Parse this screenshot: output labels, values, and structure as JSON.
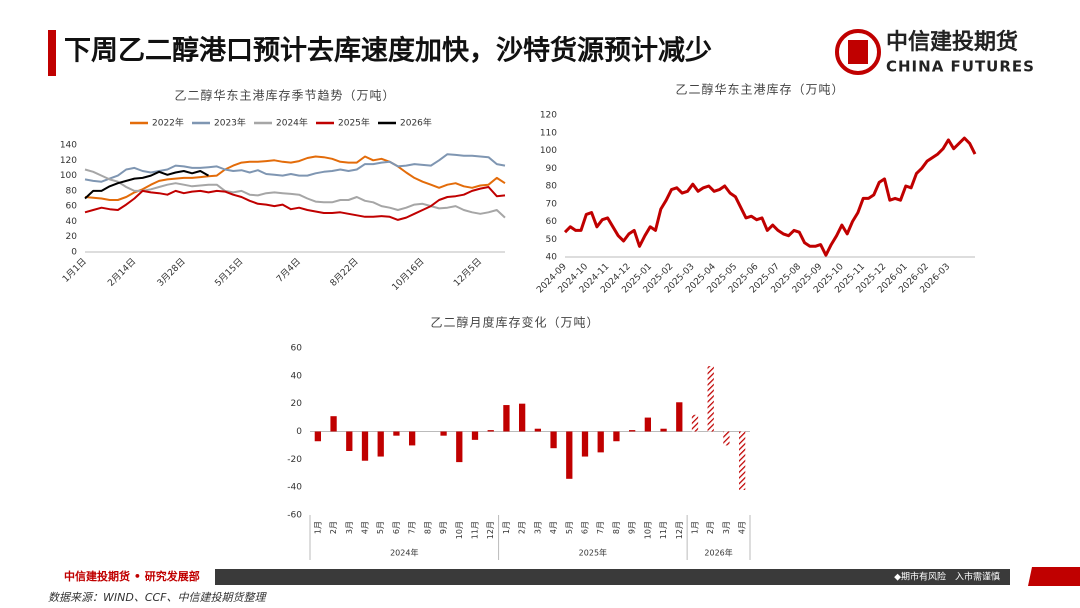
{
  "header": {
    "title": "下周乙二醇港口预计去库速度加快，沙特货源预计减少",
    "logo_cn": "中信建投期货",
    "logo_en": "CHINA FUTURES"
  },
  "footer": {
    "dept": "中信建投期货 • 研究发展部",
    "warning": "◆期市有风险　入市需谨慎",
    "source": "数据来源：WIND、CCF、中信建投期货整理"
  },
  "chart_data": [
    {
      "type": "line",
      "title": "乙二醇华东主港库存季节趋势（万吨）",
      "legend": "top",
      "grid": false,
      "categories": [
        "1月1日",
        null,
        null,
        null,
        null,
        null,
        "2月14日",
        null,
        null,
        null,
        null,
        null,
        "3月28日",
        null,
        null,
        null,
        null,
        null,
        null,
        "5月15日",
        null,
        null,
        null,
        null,
        null,
        null,
        "7月4日",
        null,
        null,
        null,
        null,
        null,
        null,
        "8月22日",
        null,
        null,
        null,
        null,
        null,
        null,
        null,
        "10月16日",
        null,
        null,
        null,
        null,
        null,
        null,
        "12月5日",
        null,
        null,
        null
      ],
      "ylim": [
        0,
        140
      ],
      "yticks": [
        0,
        20,
        40,
        60,
        80,
        100,
        120,
        140
      ],
      "series": [
        {
          "name": "2022年",
          "color": "#e36c0a",
          "values": [
            72,
            71,
            70,
            68,
            68,
            72,
            78,
            82,
            88,
            93,
            95,
            96,
            97,
            97,
            98,
            99,
            100,
            108,
            113,
            117,
            118,
            118,
            119,
            120,
            118,
            117,
            119,
            123,
            125,
            124,
            122,
            118,
            117,
            117,
            125,
            120,
            122,
            118,
            112,
            104,
            97,
            92,
            88,
            84,
            88,
            90,
            86,
            84,
            87,
            88,
            97,
            90
          ]
        },
        {
          "name": "2023年",
          "color": "#7f96b2",
          "values": [
            95,
            93,
            92,
            96,
            100,
            108,
            110,
            106,
            104,
            106,
            108,
            113,
            112,
            110,
            110,
            111,
            112,
            108,
            106,
            107,
            104,
            107,
            102,
            101,
            100,
            102,
            100,
            100,
            103,
            105,
            106,
            108,
            106,
            108,
            115,
            115,
            117,
            118,
            112,
            113,
            115,
            114,
            113,
            120,
            128,
            127,
            126,
            126,
            125,
            124,
            115,
            113
          ]
        },
        {
          "name": "2024年",
          "color": "#a6a6a6",
          "values": [
            108,
            105,
            100,
            95,
            92,
            85,
            80,
            80,
            82,
            85,
            88,
            90,
            88,
            86,
            87,
            88,
            88,
            80,
            78,
            80,
            75,
            74,
            77,
            78,
            77,
            76,
            75,
            70,
            66,
            65,
            65,
            68,
            68,
            72,
            67,
            65,
            60,
            58,
            55,
            58,
            62,
            63,
            60,
            57,
            58,
            60,
            55,
            52,
            50,
            52,
            55,
            45
          ]
        },
        {
          "name": "2025年",
          "color": "#c00000",
          "values": [
            52,
            55,
            58,
            56,
            55,
            62,
            70,
            80,
            78,
            77,
            75,
            80,
            77,
            79,
            80,
            78,
            80,
            79,
            75,
            72,
            67,
            63,
            62,
            60,
            62,
            56,
            58,
            55,
            53,
            51,
            51,
            52,
            50,
            48,
            46,
            46,
            47,
            46,
            42,
            45,
            50,
            55,
            60,
            68,
            72,
            73,
            75,
            80,
            83,
            85,
            73,
            74
          ]
        },
        {
          "name": "2026年",
          "color": "#000000",
          "values": [
            70,
            80,
            80,
            86,
            90,
            93,
            96,
            97,
            100,
            105,
            101,
            104,
            106,
            103,
            106,
            100,
            null,
            null,
            null,
            null,
            null,
            null,
            null,
            null,
            null,
            null,
            null,
            null,
            null,
            null,
            null,
            null,
            null,
            null,
            null,
            null,
            null,
            null,
            null,
            null,
            null,
            null,
            null,
            null,
            null,
            null,
            null,
            null,
            null,
            null,
            null,
            null
          ]
        }
      ]
    },
    {
      "type": "line",
      "title": "乙二醇华东主港库存（万吨）",
      "grid": false,
      "color": "#c00000",
      "categories": [
        "2024-09",
        null,
        null,
        null,
        "2024-10",
        null,
        null,
        null,
        "2024-11",
        null,
        null,
        null,
        "2024-12",
        null,
        null,
        null,
        "2025-01",
        null,
        null,
        null,
        "2025-02",
        null,
        null,
        null,
        "2025-03",
        null,
        null,
        null,
        "2025-04",
        null,
        null,
        null,
        "2025-05",
        null,
        null,
        null,
        "2025-06",
        null,
        null,
        null,
        "2025-07",
        null,
        null,
        null,
        "2025-08",
        null,
        null,
        null,
        "2025-09",
        null,
        null,
        null,
        "2025-10",
        null,
        null,
        null,
        "2025-11",
        null,
        null,
        null,
        "2025-12",
        null,
        null,
        null,
        "2026-01",
        null,
        null,
        null,
        "2026-02",
        null,
        null,
        null,
        "2026-03",
        null,
        null,
        null,
        null,
        null
      ],
      "values": [
        54,
        57,
        55,
        55,
        64,
        65,
        57,
        61,
        62,
        57,
        52,
        49,
        53,
        55,
        46,
        52,
        57,
        55,
        67,
        72,
        78,
        79,
        76,
        77,
        81,
        77,
        79,
        80,
        77,
        78,
        80,
        76,
        74,
        68,
        62,
        63,
        61,
        62,
        55,
        58,
        55,
        53,
        52,
        55,
        54,
        48,
        46,
        46,
        47,
        41,
        47,
        52,
        58,
        53,
        60,
        65,
        73,
        73,
        75,
        82,
        84,
        72,
        73,
        72,
        80,
        79,
        87,
        90,
        94,
        96,
        98,
        101,
        106,
        101,
        104,
        107,
        104,
        98
      ],
      "ylim": [
        40,
        120
      ],
      "yticks": [
        40,
        50,
        60,
        70,
        80,
        90,
        100,
        110,
        120
      ]
    },
    {
      "type": "bar",
      "title": "乙二醇月度库存变化（万吨）",
      "grid": false,
      "color": "#c00000",
      "groups": [
        {
          "name": "2024年",
          "categories": [
            "1月",
            "2月",
            "3月",
            "4月",
            "5月",
            "6月",
            "7月",
            "8月",
            "9月",
            "10月",
            "11月",
            "12月"
          ]
        },
        {
          "name": "2025年",
          "categories": [
            "1月",
            "2月",
            "3月",
            "4月",
            "5月",
            "6月",
            "7月",
            "8月",
            "9月",
            "10月",
            "11月",
            "12月"
          ]
        },
        {
          "name": "2026年",
          "categories": [
            "1月",
            "2月",
            "3月",
            "4月"
          ]
        }
      ],
      "values": [
        -7,
        11,
        -14,
        -21,
        -18,
        -3,
        -10,
        0,
        -3,
        -22,
        -6,
        1,
        19,
        20,
        2,
        -12,
        -34,
        -18,
        -15,
        -7,
        1,
        10,
        2,
        21,
        12,
        47,
        -10,
        -42
      ],
      "hatched": [
        false,
        false,
        false,
        false,
        false,
        false,
        false,
        false,
        false,
        false,
        false,
        false,
        false,
        false,
        false,
        false,
        false,
        false,
        false,
        false,
        false,
        false,
        false,
        false,
        true,
        true,
        true,
        true
      ],
      "ylim": [
        -60,
        60
      ],
      "yticks": [
        -60,
        -40,
        -20,
        0,
        20,
        40,
        60
      ]
    }
  ]
}
